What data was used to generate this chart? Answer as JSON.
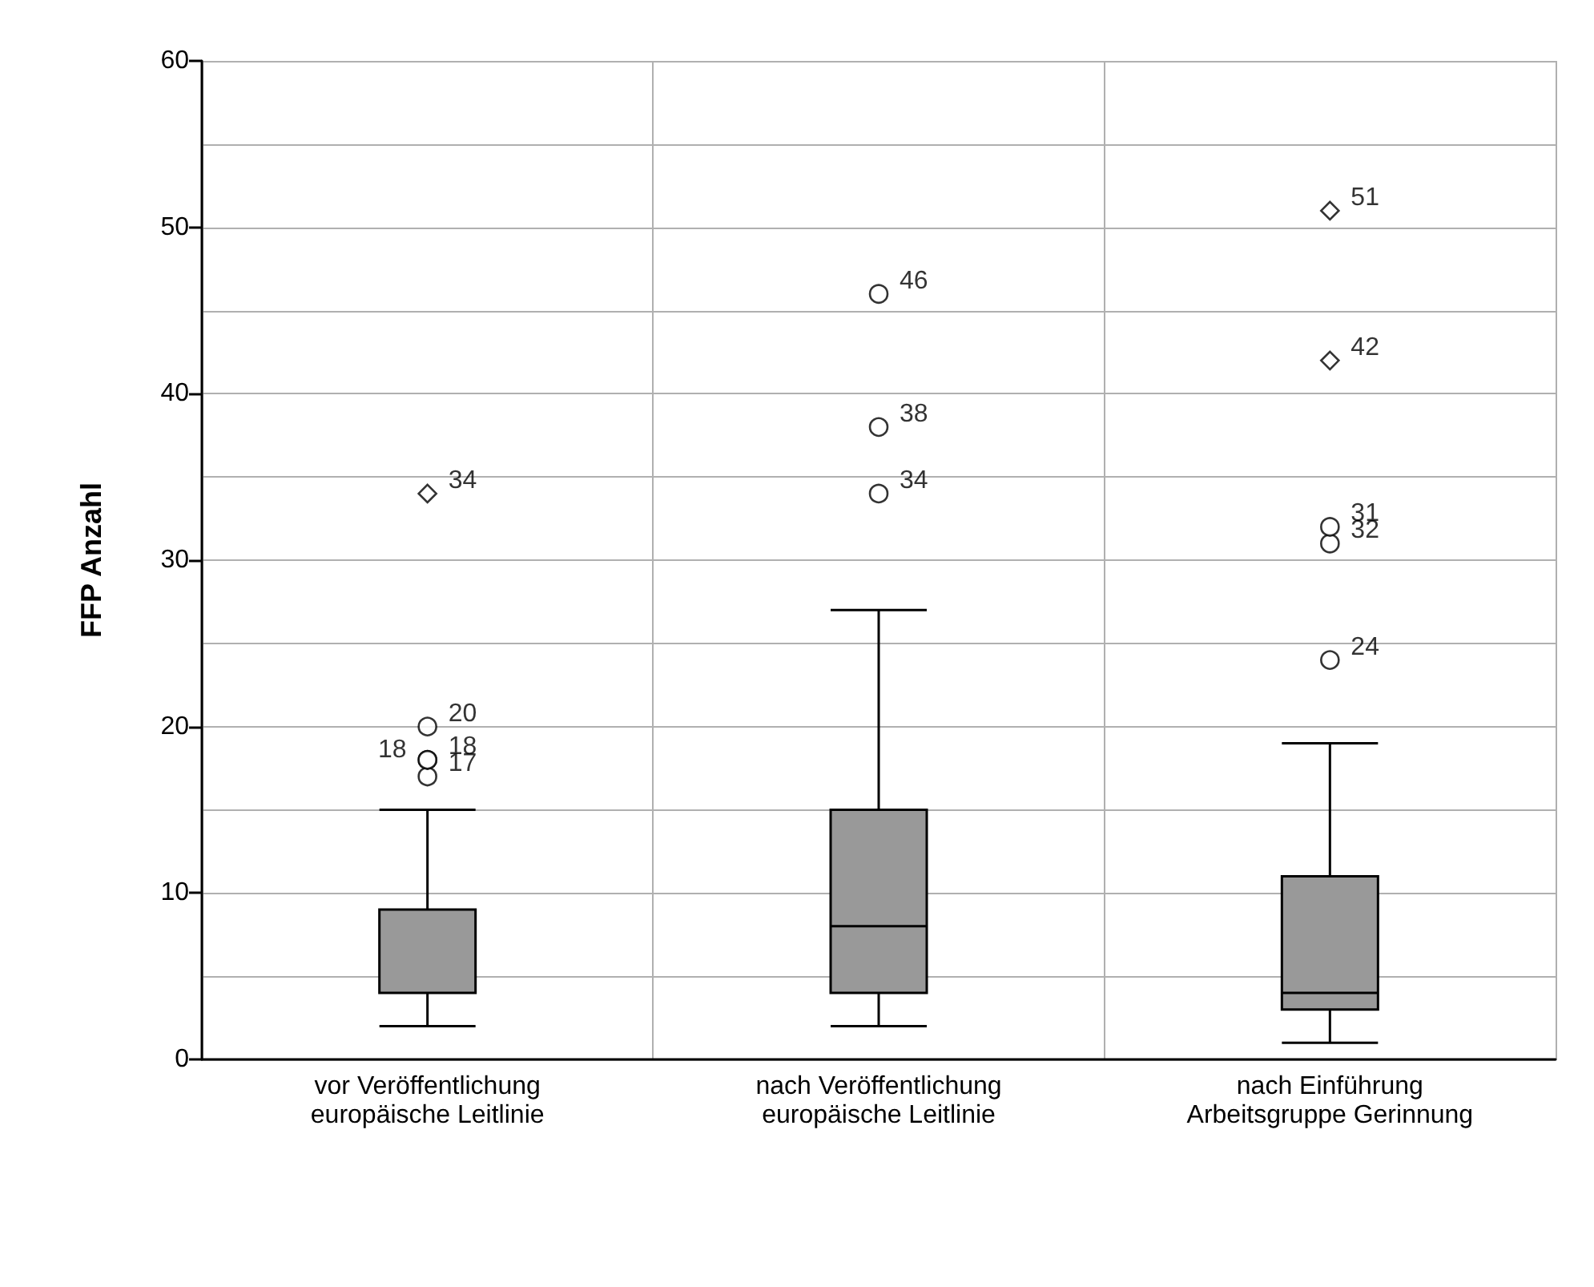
{
  "chart_data": {
    "type": "box",
    "ylabel": "FFP Anzahl",
    "categories": [
      "vor Veröffentlichung\neuropäische Leitlinie",
      "nach Veröffentlichung\neuropäische Leitlinie",
      "nach Einführung\nArbeitsgruppe Gerinnung"
    ],
    "series": [
      {
        "color": "#999999",
        "boxes": [
          {
            "low": 2,
            "q1": 4,
            "median": 4,
            "q3": 9,
            "high": 15
          },
          {
            "low": 2,
            "q1": 4,
            "median": 8,
            "q3": 15,
            "high": 27
          },
          {
            "low": 1,
            "q1": 3,
            "median": 4,
            "q3": 11,
            "high": 19
          }
        ]
      },
      {
        "type": "scatter",
        "marker": "circle",
        "color": "#ffffff",
        "x": [
          "vor Veröffentlichung\neuropäische Leitlinie",
          "vor Veröffentlichung\neuropäische Leitlinie",
          "vor Veröffentlichung\neuropäische Leitlinie",
          "vor Veröffentlichung\neuropäische Leitlinie",
          "nach Veröffentlichung\neuropäische Leitlinie",
          "nach Veröffentlichung\neuropäische Leitlinie",
          "nach Veröffentlichung\neuropäische Leitlinie",
          "nach Einführung\nArbeitsgruppe Gerinnung",
          "nach Einführung\nArbeitsgruppe Gerinnung",
          "nach Einführung\nArbeitsgruppe Gerinnung"
        ],
        "values": [
          17,
          18,
          18,
          20,
          34,
          38,
          46,
          24,
          31,
          32
        ]
      },
      {
        "type": "scatter",
        "marker": "diamond",
        "color": "#ffffff",
        "x": [
          "vor Veröffentlichung\neuropäische Leitlinie",
          "nach Einführung\nArbeitsgruppe Gerinnung",
          "nach Einführung\nArbeitsgruppe Gerinnung"
        ],
        "values": [
          34,
          42,
          51
        ]
      }
    ],
    "annotations": [
      {
        "text": "34",
        "x": "vor Veröffentlichung\neuropäische Leitlinie",
        "y": 34
      },
      {
        "text": "20",
        "x": "vor Veröffentlichung\neuropäische Leitlinie",
        "y": 20
      },
      {
        "text": "18",
        "x": "vor Veröffentlichung\neuropäische Leitlinie",
        "y": 18
      },
      {
        "text": "18",
        "x": "vor Veröffentlichung\neuropäische Leitlinie",
        "y": 18
      },
      {
        "text": "17",
        "x": "vor Veröffentlichung\neuropäische Leitlinie",
        "y": 17
      },
      {
        "text": "46",
        "x": "nach Veröffentlichung\neuropäische Leitlinie",
        "y": 46
      },
      {
        "text": "38",
        "x": "nach Veröffentlichung\neuropäische Leitlinie",
        "y": 38
      },
      {
        "text": "34",
        "x": "nach Veröffentlichung\neuropäische Leitlinie",
        "y": 34
      },
      {
        "text": "51",
        "x": "nach Einführung\nArbeitsgruppe Gerinnung",
        "y": 51
      },
      {
        "text": "42",
        "x": "nach Einführung\nArbeitsgruppe Gerinnung",
        "y": 42
      },
      {
        "text": "31",
        "x": "nach Einführung\nArbeitsgruppe Gerinnung",
        "y": 32
      },
      {
        "text": "32",
        "x": "nach Einführung\nArbeitsgruppe Gerinnung",
        "y": 31
      },
      {
        "text": "24",
        "x": "nach Einführung\nArbeitsgruppe Gerinnung",
        "y": 24
      }
    ],
    "ylim": [
      0,
      60
    ],
    "yticks": [
      0,
      10,
      20,
      30,
      40,
      50,
      60
    ],
    "grid": true
  }
}
